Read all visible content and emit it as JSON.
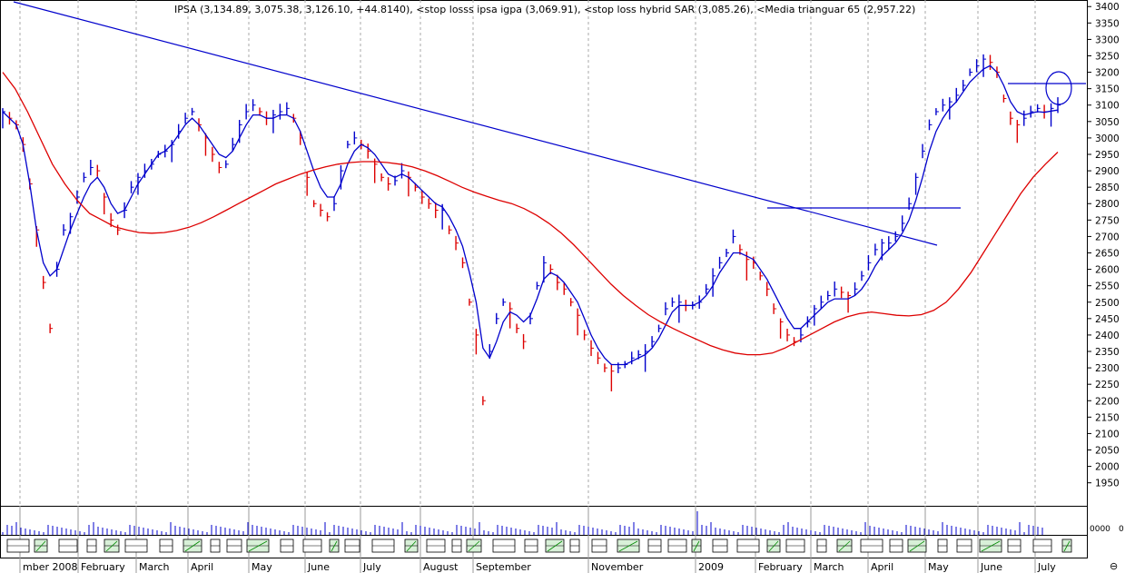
{
  "chart_data": {
    "type": "line",
    "title": "IPSA (3,134.89, 3,075.38, 3,126.10, +44.8140), <stop losss ipsa igpa (3,069.91), <stop loss hybrid SAR (3,085.26), <Media trianguar  65 (2,957.22)",
    "ylim": [
      1880,
      3420
    ],
    "y_ticks": [
      1950,
      2000,
      2050,
      2100,
      2150,
      2200,
      2250,
      2300,
      2350,
      2400,
      2450,
      2500,
      2550,
      2600,
      2650,
      2700,
      2750,
      2800,
      2850,
      2900,
      2950,
      3000,
      3050,
      3100,
      3150,
      3200,
      3250,
      3300,
      3350,
      3400
    ],
    "volume_label": "0000",
    "volume_sub_label": "0",
    "x_labels": [
      "mber 2008",
      "February",
      "March",
      "April",
      "May",
      "June",
      "July",
      "August",
      "September",
      "November",
      "2009",
      "February",
      "March",
      "April",
      "May",
      "June",
      "July"
    ],
    "series": [
      {
        "name": "IPSA",
        "color": "#0000cc",
        "values": [
          3080,
          3060,
          3040,
          2980,
          2860,
          2720,
          2560,
          2420,
          2600,
          2720,
          2760,
          2820,
          2880,
          2910,
          2900,
          2820,
          2750,
          2720,
          2780,
          2850,
          2880,
          2900,
          2920,
          2950,
          2960,
          2980,
          3020,
          3060,
          3080,
          3040,
          3000,
          2950,
          2910,
          2920,
          2980,
          3040,
          3080,
          3100,
          3080,
          3060,
          3070,
          3080,
          3090,
          3060,
          3000,
          2880,
          2800,
          2780,
          2760,
          2800,
          2900,
          2980,
          3000,
          2980,
          2960,
          2920,
          2880,
          2860,
          2870,
          2900,
          2880,
          2850,
          2820,
          2800,
          2780,
          2780,
          2720,
          2680,
          2620,
          2500,
          2400,
          2200,
          2350,
          2450,
          2500,
          2480,
          2420,
          2380,
          2450,
          2550,
          2620,
          2600,
          2560,
          2540,
          2500,
          2460,
          2400,
          2360,
          2330,
          2300,
          2290,
          2300,
          2310,
          2330,
          2340,
          2350,
          2380,
          2420,
          2480,
          2500,
          2500,
          2490,
          2490,
          2500,
          2540,
          2580,
          2620,
          2650,
          2700,
          2660,
          2630,
          2620,
          2580,
          2540,
          2480,
          2440,
          2400,
          2380,
          2400,
          2440,
          2480,
          2500,
          2520,
          2540,
          2530,
          2520,
          2540,
          2580,
          2620,
          2660,
          2680,
          2680,
          2700,
          2740,
          2800,
          2880,
          2960,
          3040,
          3080,
          3100,
          3110,
          3130,
          3160,
          3200,
          3220,
          3240,
          3230,
          3200,
          3120,
          3060,
          3040,
          3060,
          3080,
          3090,
          3080,
          3090,
          3100
        ]
      },
      {
        "name": "stop losss ipsa igpa",
        "color": "#0000cc",
        "values": [
          3080,
          3060,
          3040,
          2980,
          2860,
          2720,
          2620,
          2580,
          2600,
          2660,
          2720,
          2770,
          2820,
          2860,
          2880,
          2850,
          2800,
          2770,
          2780,
          2820,
          2860,
          2890,
          2920,
          2950,
          2960,
          2980,
          3010,
          3040,
          3060,
          3040,
          3010,
          2980,
          2950,
          2940,
          2960,
          3000,
          3040,
          3070,
          3070,
          3060,
          3060,
          3070,
          3070,
          3060,
          3020,
          2960,
          2900,
          2850,
          2820,
          2820,
          2860,
          2920,
          2960,
          2980,
          2970,
          2950,
          2920,
          2890,
          2880,
          2890,
          2880,
          2860,
          2840,
          2820,
          2800,
          2790,
          2760,
          2720,
          2670,
          2590,
          2500,
          2360,
          2330,
          2380,
          2440,
          2470,
          2460,
          2440,
          2460,
          2510,
          2570,
          2590,
          2580,
          2560,
          2530,
          2500,
          2450,
          2400,
          2360,
          2330,
          2310,
          2310,
          2310,
          2320,
          2330,
          2340,
          2360,
          2390,
          2430,
          2470,
          2490,
          2490,
          2490,
          2500,
          2520,
          2550,
          2590,
          2620,
          2650,
          2650,
          2640,
          2630,
          2600,
          2570,
          2530,
          2490,
          2450,
          2420,
          2420,
          2440,
          2460,
          2480,
          2500,
          2510,
          2510,
          2510,
          2520,
          2540,
          2570,
          2610,
          2640,
          2660,
          2680,
          2710,
          2750,
          2810,
          2880,
          2960,
          3020,
          3060,
          3090,
          3110,
          3140,
          3170,
          3190,
          3210,
          3220,
          3200,
          3160,
          3110,
          3080,
          3070,
          3075,
          3080,
          3078,
          3082,
          3085
        ]
      },
      {
        "name": "Media trianguar  65",
        "color": "#dd0000",
        "values": [
          3200,
          3150,
          3080,
          3000,
          2920,
          2860,
          2810,
          2770,
          2750,
          2730,
          2720,
          2712,
          2710,
          2712,
          2718,
          2728,
          2742,
          2760,
          2780,
          2800,
          2820,
          2840,
          2860,
          2875,
          2890,
          2902,
          2912,
          2920,
          2925,
          2928,
          2928,
          2925,
          2920,
          2912,
          2900,
          2885,
          2868,
          2850,
          2835,
          2822,
          2810,
          2800,
          2785,
          2765,
          2740,
          2710,
          2675,
          2635,
          2595,
          2555,
          2520,
          2490,
          2462,
          2440,
          2420,
          2402,
          2385,
          2368,
          2355,
          2345,
          2340,
          2340,
          2345,
          2360,
          2380,
          2400,
          2420,
          2440,
          2455,
          2465,
          2470,
          2465,
          2460,
          2458,
          2462,
          2475,
          2500,
          2540,
          2590,
          2650,
          2710,
          2770,
          2830,
          2880,
          2920,
          2957
        ]
      }
    ],
    "annotations": [
      "downtrend line",
      "horizontal resistance line",
      "circle marker"
    ]
  }
}
